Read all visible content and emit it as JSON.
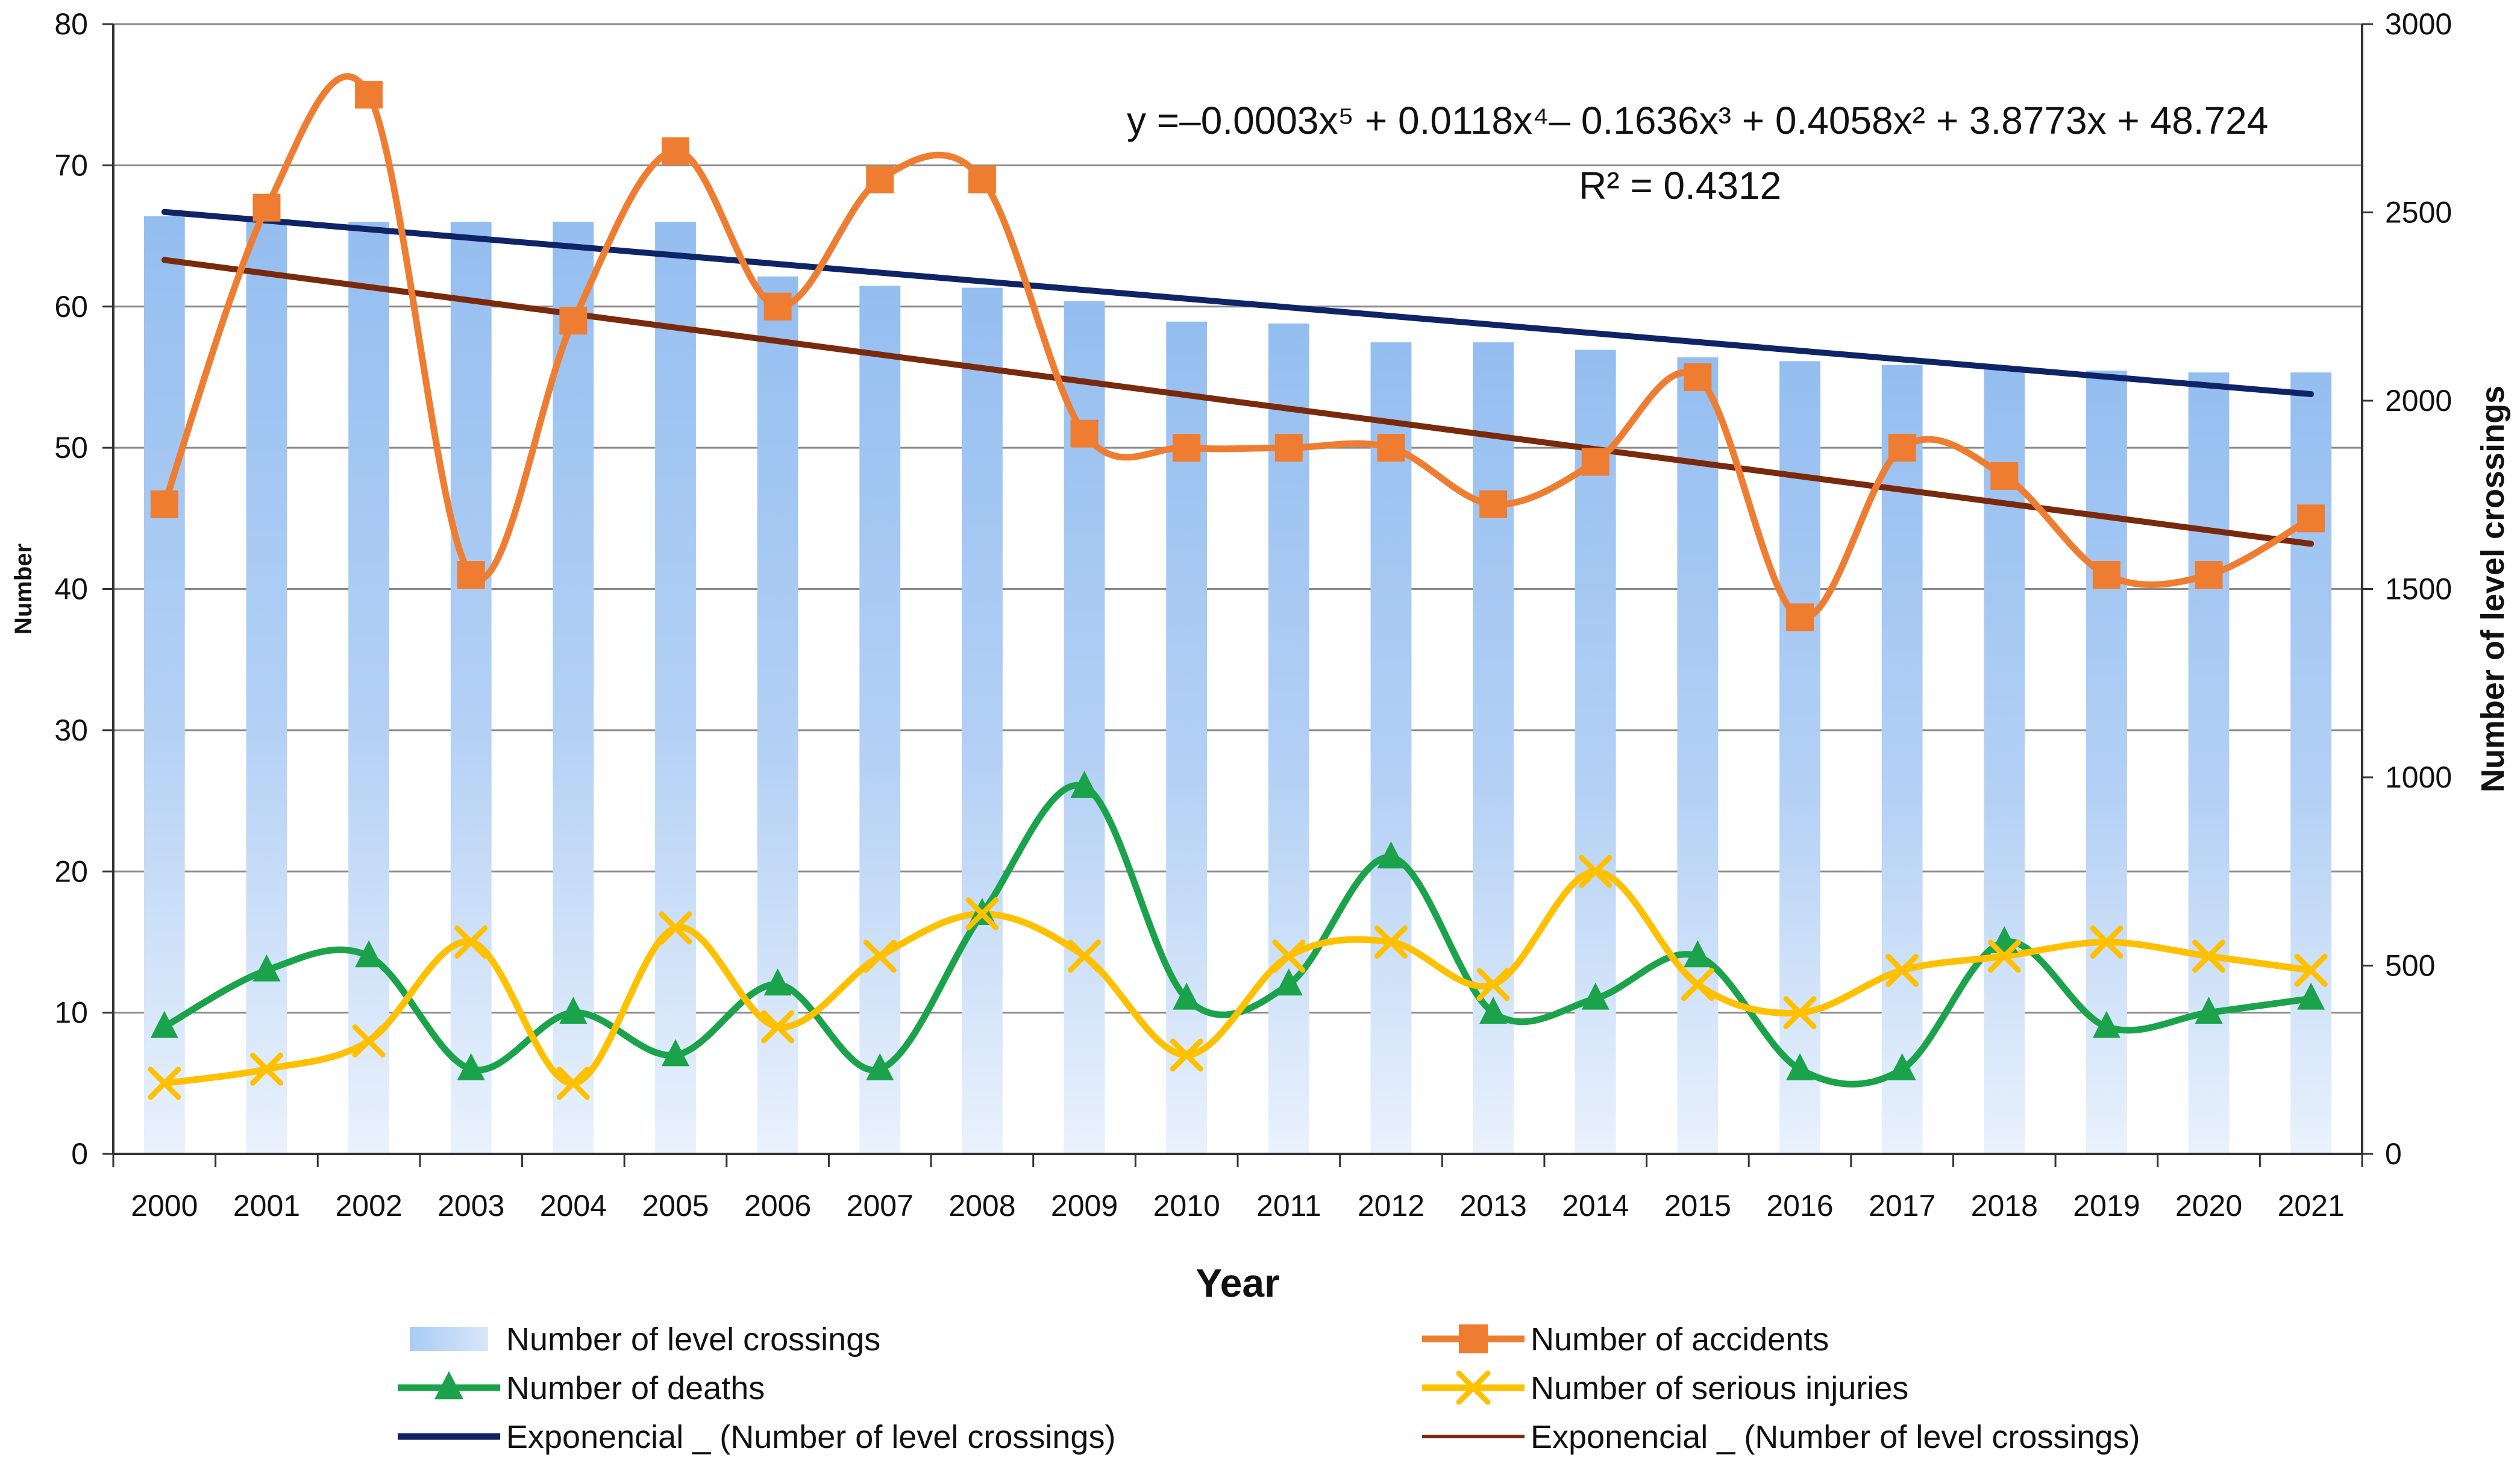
{
  "chart_data": {
    "type": "bar",
    "xlabel": "Year",
    "ylabel": "Number",
    "y2label": "Number of level crossings",
    "ylim": [
      0,
      80
    ],
    "y2lim": [
      0,
      3000
    ],
    "yticks": [
      "0",
      "10",
      "20",
      "30",
      "40",
      "50",
      "60",
      "70",
      "80"
    ],
    "y2ticks": [
      "0",
      "500",
      "1000",
      "1500",
      "2000",
      "2500",
      "3000"
    ],
    "grid": "horizontal",
    "legend_position": "bottom",
    "categories": [
      "2000",
      "2001",
      "2002",
      "2003",
      "2004",
      "2005",
      "2006",
      "2007",
      "2008",
      "2009",
      "2010",
      "2011",
      "2012",
      "2013",
      "2014",
      "2015",
      "2016",
      "2017",
      "2018",
      "2019",
      "2020",
      "2021"
    ],
    "series": [
      {
        "name": "Number of level crossings",
        "kind": "bar",
        "axis": "right",
        "color": "#9cc3f2",
        "values": [
          2490,
          2480,
          2475,
          2475,
          2475,
          2475,
          2330,
          2305,
          2300,
          2265,
          2210,
          2205,
          2155,
          2155,
          2135,
          2115,
          2105,
          2095,
          2085,
          2080,
          2075,
          2075
        ]
      },
      {
        "name": "Number of accidents",
        "kind": "line",
        "axis": "left",
        "color": "#ef7d31",
        "marker": "square",
        "values": [
          46,
          67,
          75,
          41,
          59,
          71,
          60,
          69,
          69,
          51,
          50,
          50,
          50,
          46,
          49,
          55,
          38,
          50,
          48,
          41,
          41,
          45
        ]
      },
      {
        "name": "Number of deaths",
        "kind": "line",
        "axis": "left",
        "color": "#1aa34a",
        "marker": "triangle",
        "values": [
          9,
          13,
          14,
          6,
          10,
          7,
          12,
          6,
          17,
          26,
          11,
          12,
          21,
          10,
          11,
          14,
          6,
          6,
          15,
          9,
          10,
          11
        ]
      },
      {
        "name": "Number of serious injuries",
        "kind": "line",
        "axis": "left",
        "color": "#ffc000",
        "marker": "x",
        "values": [
          5,
          6,
          8,
          15,
          5,
          16,
          9,
          14,
          17,
          14,
          7,
          14,
          15,
          12,
          20,
          12,
          10,
          13,
          14,
          15,
          14,
          13
        ]
      },
      {
        "name": "Exponencial _ (Number of level crossings)",
        "kind": "trend",
        "axis": "left",
        "color": "#0f2466",
        "start": 66.7,
        "end": 53.8
      },
      {
        "name": "Exponencial _ (Number of level crossings)",
        "kind": "trend",
        "axis": "left",
        "color": "#7a2a0c",
        "start": 63.3,
        "end": 43.2
      }
    ],
    "annotations": {
      "equation": "y =–0.0003x⁵ + 0.0118x⁴– 0.1636x³ + 0.4058x² + 3.8773x + 48.724",
      "r_squared": "R² = 0.4312"
    },
    "legend": [
      "Number of level crossings",
      "Number of accidents",
      "Number of deaths",
      "Number of serious injuries",
      "Exponencial _ (Number of level crossings)",
      "Exponencial _ (Number of level crossings)"
    ]
  }
}
